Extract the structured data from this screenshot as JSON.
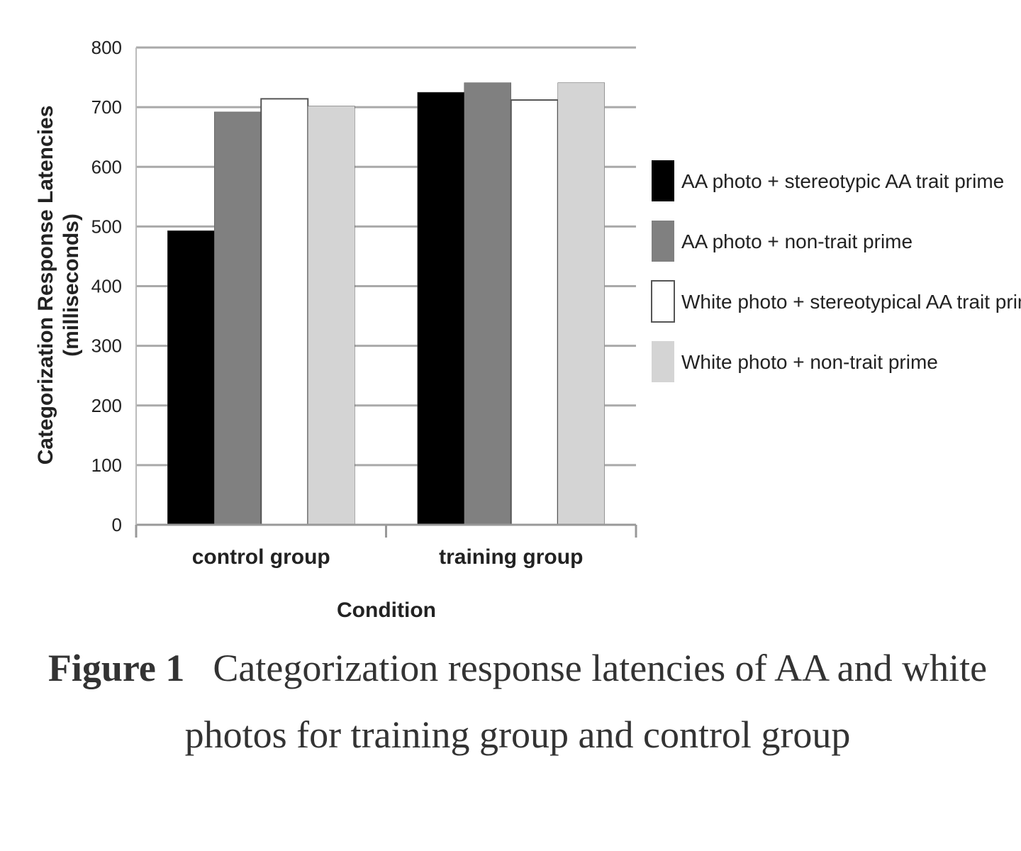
{
  "chart_data": {
    "type": "bar",
    "categories": [
      "control group",
      "training group"
    ],
    "series": [
      {
        "name": "AA photo + stereotypic AA trait prime",
        "values": [
          493,
          725
        ],
        "color": "#000000"
      },
      {
        "name": "AA photo + non-trait prime",
        "values": [
          692,
          741
        ],
        "color": "#808080"
      },
      {
        "name": "White photo + stereotypical AA trait prime",
        "values": [
          714,
          712
        ],
        "color": "#ffffff"
      },
      {
        "name": "White photo + non-trait prime",
        "values": [
          702,
          741
        ],
        "color": "#d4d4d4"
      }
    ],
    "xlabel": "Condition",
    "ylabel_lines": [
      "Categorization Response Latencies",
      "(milliseconds)"
    ],
    "ylim": [
      0,
      800
    ],
    "yticks": [
      "0",
      "100",
      "200",
      "300",
      "400",
      "500",
      "600",
      "700",
      "800"
    ],
    "grid": true,
    "legend_position": "right"
  },
  "caption": {
    "label": "Figure 1",
    "text": "Categorization response latencies of AA and white photos for training group and control group"
  }
}
